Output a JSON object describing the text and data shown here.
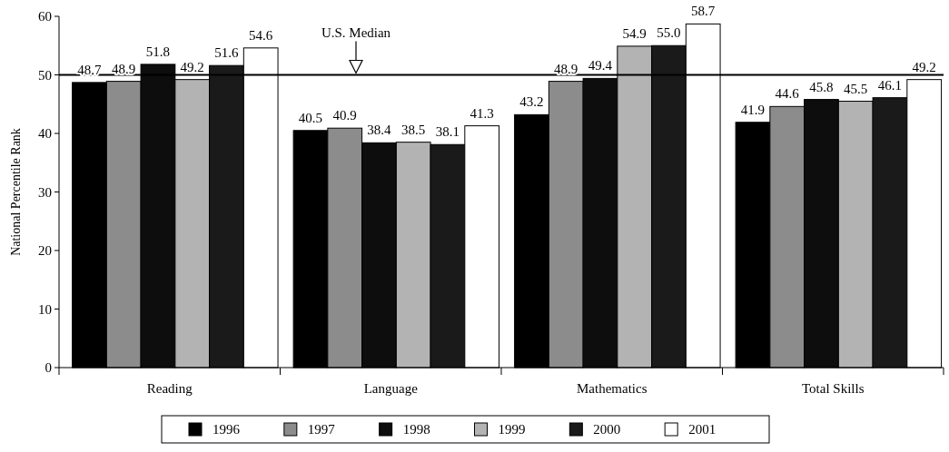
{
  "chart_data": {
    "type": "bar",
    "ylabel": "National Percentile Rank",
    "categories": [
      "Reading",
      "Language",
      "Mathematics",
      "Total Skills"
    ],
    "series": [
      {
        "name": "1996",
        "color": "#000000",
        "values": [
          48.7,
          40.5,
          43.2,
          41.9
        ],
        "value_labels": [
          "48.7",
          "40.5",
          "43.2",
          "41.9"
        ]
      },
      {
        "name": "1997",
        "color": "#8c8c8c",
        "values": [
          48.9,
          40.9,
          48.9,
          44.6
        ],
        "value_labels": [
          "48.9",
          "40.9",
          "48.9",
          "44.6"
        ]
      },
      {
        "name": "1998",
        "color": "#0d0d0d",
        "values": [
          51.8,
          38.4,
          49.4,
          45.8
        ],
        "value_labels": [
          "51.8",
          "38.4",
          "49.4",
          "45.8"
        ]
      },
      {
        "name": "1999",
        "color": "#b3b3b3",
        "values": [
          49.2,
          38.5,
          54.9,
          45.5
        ],
        "value_labels": [
          "49.2",
          "38.5",
          "54.9",
          "45.5"
        ]
      },
      {
        "name": "2000",
        "color": "#1a1a1a",
        "values": [
          51.6,
          38.1,
          55.0,
          46.1
        ],
        "value_labels": [
          "51.6",
          "38.1",
          "55.0",
          "46.1"
        ]
      },
      {
        "name": "2001",
        "color": "#ffffff",
        "values": [
          54.6,
          41.3,
          58.7,
          49.2
        ],
        "value_labels": [
          "54.6",
          "41.3",
          "58.7",
          "49.2"
        ]
      }
    ],
    "ylim": [
      0,
      60
    ],
    "yticks": [
      0,
      10,
      20,
      30,
      40,
      50,
      60
    ],
    "grid": false,
    "legend": "bottom",
    "ref_lines": [
      {
        "axis": "y",
        "value": 50,
        "label": "U.S. Median",
        "color": "#000000"
      }
    ]
  }
}
